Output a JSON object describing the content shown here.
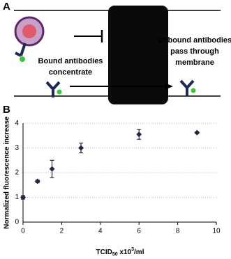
{
  "panel_a": {
    "label": "A",
    "bound_text": [
      "Bound antibodies",
      "concentrate"
    ],
    "unbound_text": [
      "Unbound antibodies",
      "pass through",
      "membrane"
    ]
  },
  "chart_data": {
    "type": "scatter",
    "panel_label": "B",
    "x_label": {
      "main": "TCID",
      "sub": "50",
      "mid": " x10",
      "sup": "3",
      "end": "/ml"
    },
    "y_label": "Normalized fluorescence increase",
    "x": [
      0,
      0.75,
      1.5,
      3,
      6,
      9
    ],
    "values": [
      1.0,
      1.65,
      2.15,
      3.0,
      3.55,
      3.62
    ],
    "errors": [
      0.07,
      0.05,
      0.35,
      0.2,
      0.2,
      0.03
    ],
    "color": "#1f2a44",
    "xlim": [
      0,
      10
    ],
    "xticks": [
      0,
      2,
      4,
      6,
      8,
      10
    ],
    "ylim": [
      0,
      4
    ],
    "yticks": [
      0,
      1,
      2,
      3,
      4
    ],
    "grid": true
  }
}
